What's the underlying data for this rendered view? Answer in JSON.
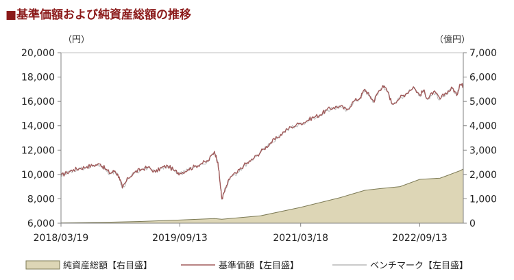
{
  "chart_data": {
    "type": "line",
    "title": "■基準価額および純資産総額の推移",
    "left_axis_unit": "（円）",
    "right_axis_unit": "（億円）",
    "y_left": {
      "min": 6000,
      "max": 20000,
      "ticks": [
        "6,000",
        "8,000",
        "10,000",
        "12,000",
        "14,000",
        "16,000",
        "18,000",
        "20,000"
      ]
    },
    "y_right": {
      "min": 0,
      "max": 7000,
      "ticks": [
        "0",
        "1,000",
        "2,000",
        "3,000",
        "4,000",
        "5,000",
        "6,000",
        "7,000"
      ]
    },
    "x_range": [
      "2018/03/19",
      "2023/03/31"
    ],
    "x_ticks": [
      "2018/03/19",
      "2019/09/13",
      "2021/03/18",
      "2022/09/13"
    ],
    "grid": false,
    "legend_position": "bottom",
    "legend": [
      "純資産総額【右目盛】",
      "基準価額【左目盛】",
      "ベンチマーク【左目盛】"
    ],
    "colors": {
      "title": "#8b1a1a",
      "nav_line": "#a05a5a",
      "benchmark_line": "#b9b9b9",
      "aum_fill": "#ddd6b6",
      "aum_stroke": "#7d7b56",
      "axis": "#808080",
      "plot_border": "#bfbfbf"
    },
    "series": [
      {
        "name": "基準価額【左目盛】",
        "axis": "left",
        "style": "line",
        "x": [
          "2018-03-19",
          "2018-04-15",
          "2018-05-15",
          "2018-06-15",
          "2018-07-15",
          "2018-08-15",
          "2018-09-15",
          "2018-10-05",
          "2018-10-30",
          "2018-11-20",
          "2018-12-10",
          "2018-12-25",
          "2019-01-20",
          "2019-02-20",
          "2019-03-20",
          "2019-04-20",
          "2019-05-25",
          "2019-06-20",
          "2019-07-20",
          "2019-08-20",
          "2019-09-13",
          "2019-10-20",
          "2019-11-20",
          "2019-12-20",
          "2020-01-20",
          "2020-02-18",
          "2020-03-05",
          "2020-03-15",
          "2020-03-23",
          "2020-04-10",
          "2020-05-01",
          "2020-06-01",
          "2020-07-01",
          "2020-08-01",
          "2020-09-01",
          "2020-10-01",
          "2020-11-01",
          "2020-12-01",
          "2021-01-01",
          "2021-02-01",
          "2021-03-18",
          "2021-04-15",
          "2021-05-15",
          "2021-06-15",
          "2021-07-15",
          "2021-08-15",
          "2021-09-15",
          "2021-10-15",
          "2021-11-15",
          "2021-12-15",
          "2022-01-05",
          "2022-01-25",
          "2022-02-15",
          "2022-03-01",
          "2022-03-28",
          "2022-04-20",
          "2022-05-10",
          "2022-06-15",
          "2022-07-10",
          "2022-08-15",
          "2022-09-13",
          "2022-09-30",
          "2022-10-20",
          "2022-11-15",
          "2022-12-15",
          "2023-01-10",
          "2023-02-10",
          "2023-03-01",
          "2023-03-15",
          "2023-03-31"
        ],
        "values": [
          9900,
          10150,
          10400,
          10500,
          10650,
          10750,
          10850,
          10500,
          10100,
          10300,
          9800,
          8900,
          9700,
          10200,
          10400,
          10600,
          10200,
          10550,
          10700,
          10300,
          10100,
          10400,
          10650,
          10900,
          11100,
          11900,
          11000,
          9300,
          8000,
          8900,
          9800,
          10150,
          10750,
          11100,
          11600,
          12100,
          12600,
          13000,
          13500,
          13900,
          14200,
          14400,
          14700,
          14900,
          15300,
          15500,
          15600,
          15300,
          16000,
          16300,
          17000,
          16500,
          16000,
          16600,
          17300,
          16800,
          15800,
          16300,
          16600,
          17200,
          16500,
          16900,
          16200,
          16800,
          16200,
          16700,
          17100,
          16500,
          17400,
          17300
        ]
      },
      {
        "name": "ベンチマーク【左目盛】",
        "axis": "left",
        "style": "line",
        "x": [
          "2018-03-19",
          "2018-04-15",
          "2018-05-15",
          "2018-06-15",
          "2018-07-15",
          "2018-08-15",
          "2018-09-15",
          "2018-10-05",
          "2018-10-30",
          "2018-11-20",
          "2018-12-10",
          "2018-12-25",
          "2019-01-20",
          "2019-02-20",
          "2019-03-20",
          "2019-04-20",
          "2019-05-25",
          "2019-06-20",
          "2019-07-20",
          "2019-08-20",
          "2019-09-13",
          "2019-10-20",
          "2019-11-20",
          "2019-12-20",
          "2020-01-20",
          "2020-02-18",
          "2020-03-05",
          "2020-03-15",
          "2020-03-23",
          "2020-04-10",
          "2020-05-01",
          "2020-06-01",
          "2020-07-01",
          "2020-08-01",
          "2020-09-01",
          "2020-10-01",
          "2020-11-01",
          "2020-12-01",
          "2021-01-01",
          "2021-02-01",
          "2021-03-18",
          "2021-04-15",
          "2021-05-15",
          "2021-06-15",
          "2021-07-15",
          "2021-08-15",
          "2021-09-15",
          "2021-10-15",
          "2021-11-15",
          "2021-12-15",
          "2022-01-05",
          "2022-01-25",
          "2022-02-15",
          "2022-03-01",
          "2022-03-28",
          "2022-04-20",
          "2022-05-10",
          "2022-06-15",
          "2022-07-10",
          "2022-08-15",
          "2022-09-13",
          "2022-09-30",
          "2022-10-20",
          "2022-11-15",
          "2022-12-15",
          "2023-01-10",
          "2023-02-10",
          "2023-03-01",
          "2023-03-15",
          "2023-03-31"
        ],
        "values": [
          9850,
          10100,
          10350,
          10450,
          10600,
          10700,
          10800,
          10450,
          10050,
          10250,
          9750,
          8850,
          9650,
          10150,
          10350,
          10550,
          10150,
          10500,
          10650,
          10250,
          10050,
          10350,
          10600,
          10850,
          11050,
          11850,
          10950,
          9250,
          7950,
          8850,
          9750,
          10100,
          10700,
          11050,
          11550,
          12050,
          12550,
          12950,
          13450,
          13850,
          14150,
          14350,
          14650,
          14850,
          15250,
          15450,
          15550,
          15250,
          15950,
          16250,
          16950,
          16450,
          15950,
          16550,
          17250,
          16750,
          15750,
          16250,
          16550,
          17150,
          16450,
          16850,
          16150,
          16750,
          16150,
          16650,
          17050,
          16450,
          17350,
          17250
        ]
      },
      {
        "name": "純資産総額【右目盛】",
        "axis": "right",
        "style": "area",
        "x": [
          "2018-03-19",
          "2018-09-15",
          "2019-03-15",
          "2019-09-13",
          "2020-02-18",
          "2020-03-23",
          "2020-09-15",
          "2021-03-18",
          "2021-09-15",
          "2022-01-05",
          "2022-03-15",
          "2022-06-15",
          "2022-09-13",
          "2022-12-15",
          "2023-01-15",
          "2023-03-15",
          "2023-03-31"
        ],
        "values": [
          10,
          30,
          70,
          130,
          190,
          160,
          300,
          650,
          1050,
          1350,
          1420,
          1500,
          1800,
          1850,
          1950,
          2150,
          2220
        ]
      }
    ]
  }
}
